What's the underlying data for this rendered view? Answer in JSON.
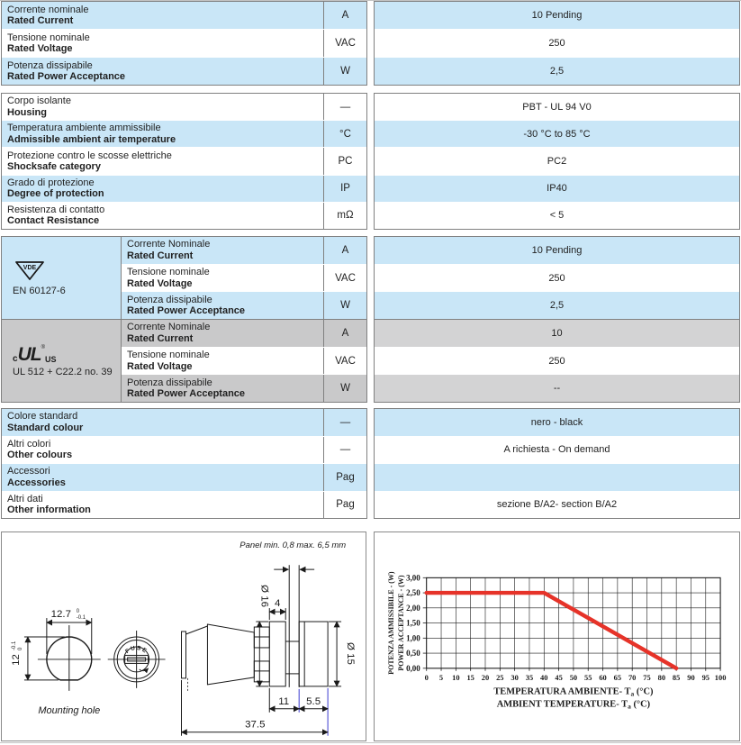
{
  "colors": {
    "row_blue": "#c9e6f7",
    "row_gray": "#c9c9ca",
    "row_gray_value": "#d3d3d4",
    "border": "#808080",
    "text": "#1f1f1f",
    "accent_red": "#e63329",
    "dim_blue": "#3b3bd0"
  },
  "sections": {
    "ratings": {
      "rows": [
        {
          "it": "Corrente nominale",
          "en": "Rated Current",
          "unit": "A",
          "value": "10 Pending"
        },
        {
          "it": "Tensione nominale",
          "en": "Rated Voltage",
          "unit": "VAC",
          "value": "250"
        },
        {
          "it": "Potenza dissipabile",
          "en": "Rated Power Acceptance",
          "unit": "W",
          "value": "2,5"
        }
      ]
    },
    "general": {
      "rows": [
        {
          "it": "Corpo isolante",
          "en": "Housing",
          "unit": "—",
          "value": "PBT - UL 94 V0"
        },
        {
          "it": "Temperatura ambiente ammissibile",
          "en": "Admissible ambient air temperature",
          "unit": "°C",
          "value": "-30 °C to 85 °C"
        },
        {
          "it": "Protezione contro le scosse elettriche",
          "en": "Shocksafe category",
          "unit": "PC",
          "value": "PC2"
        },
        {
          "it": "Grado di protezione",
          "en": "Degree of protection",
          "unit": "IP",
          "value": "IP40"
        },
        {
          "it": "Resistenza di contatto",
          "en": "Contact Resistance",
          "unit": "mΩ",
          "value": "< 5"
        }
      ]
    },
    "certifications": [
      {
        "logo_text": "VDE",
        "standard": "EN 60127-6",
        "rows": [
          {
            "it": "Corrente Nominale",
            "en": "Rated Current",
            "unit": "A",
            "value": "10 Pending"
          },
          {
            "it": "Tensione nominale",
            "en": "Rated Voltage",
            "unit": "VAC",
            "value": "250"
          },
          {
            "it": "Potenza dissipabile",
            "en": "Rated Power Acceptance",
            "unit": "W",
            "value": "2,5"
          }
        ]
      },
      {
        "logo": {
          "c": "c",
          "main": "UL",
          "reg": "®",
          "us": "US"
        },
        "standard": "UL 512 + C22.2 no. 39",
        "rows": [
          {
            "it": "Corrente Nominale",
            "en": "Rated Current",
            "unit": "A",
            "value": "10"
          },
          {
            "it": "Tensione nominale",
            "en": "Rated Voltage",
            "unit": "VAC",
            "value": "250"
          },
          {
            "it": "Potenza dissipabile",
            "en": "Rated Power Acceptance",
            "unit": "W",
            "value": "--"
          }
        ]
      }
    ],
    "colours": {
      "rows": [
        {
          "it": "Colore standard",
          "en": "Standard colour",
          "unit": "—",
          "value": "nero - black"
        },
        {
          "it": "Altri colori",
          "en": "Other colours",
          "unit": "—",
          "value": "A richiesta - On demand"
        },
        {
          "it": "Accessori",
          "en": "Accessories",
          "unit": "Pag",
          "value": ""
        },
        {
          "it": "Altri dati",
          "en": "Other information",
          "unit": "Pag",
          "value": "sezione B/A2- section B/A2"
        }
      ]
    }
  },
  "drawing": {
    "panel_note": "Panel min. 0,8 max. 6,5 mm",
    "mounting_hole_label": "Mounting hole",
    "face_text": "FUSE",
    "dims": {
      "width": "12.7",
      "width_tol_top": "0",
      "width_tol_bottom": "-0.1",
      "height": "12",
      "height_tol_top": "0",
      "height_tol_bottom": "-0.1",
      "flange_dia": "Ø 16",
      "bezel_depth": "4",
      "knob_dia": "Ø 15",
      "body_len": "11",
      "rear_len": "5.5",
      "total_len": "37.5"
    }
  },
  "chart_data": {
    "type": "line",
    "series": [
      {
        "name": "Power acceptance derating",
        "points": [
          [
            0,
            2.5
          ],
          [
            40,
            2.5
          ],
          [
            85,
            0
          ]
        ],
        "color": "#e63329"
      }
    ],
    "xlim": [
      0,
      100
    ],
    "ylim": [
      0,
      3
    ],
    "grid": true,
    "xtick_labels": [
      "0",
      "5",
      "10",
      "15",
      "20",
      "25",
      "30",
      "35",
      "40",
      "45",
      "50",
      "55",
      "60",
      "65",
      "70",
      "75",
      "80",
      "85",
      "90",
      "95",
      "100"
    ],
    "ytick_labels": [
      "0,00",
      "0,50",
      "1,00",
      "1,50",
      "2,00",
      "2,50",
      "3,00"
    ],
    "ylabel_lines": [
      "POTENZA AMMISSIBILE - (W)",
      "POWER ACCEPTANCE - (W)"
    ],
    "xlabel_lines": [
      {
        "pre": "TEMPERATURA AMBIENTE- T",
        "sub": "a",
        "post": " (°C)"
      },
      {
        "pre": "AMBIENT TEMPERATURE- T",
        "sub": "a",
        "post": " (°C)"
      }
    ]
  }
}
